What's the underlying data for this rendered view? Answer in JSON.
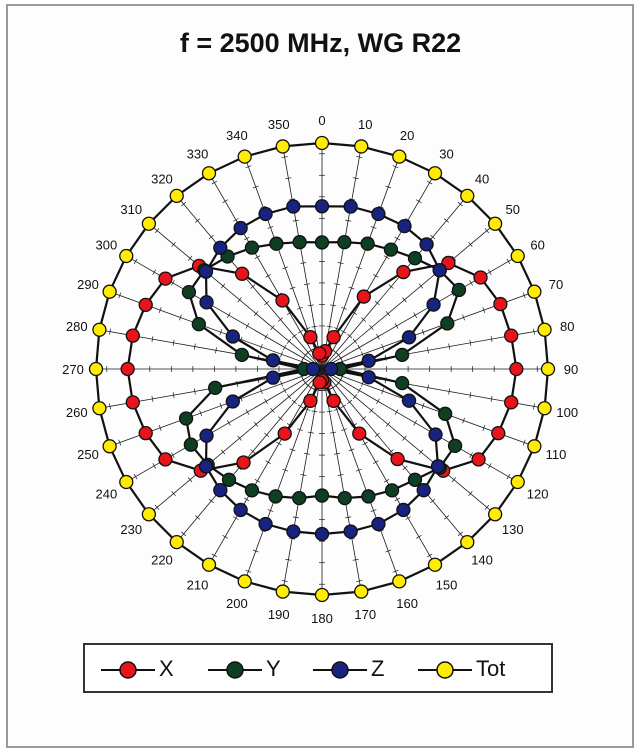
{
  "chart_data": {
    "type": "polar",
    "title": "f = 2500 MHz, WG R22",
    "angles": [
      0,
      10,
      20,
      30,
      40,
      50,
      60,
      70,
      80,
      90,
      100,
      110,
      120,
      130,
      140,
      150,
      160,
      170,
      180,
      190,
      200,
      210,
      220,
      230,
      240,
      250,
      260,
      270,
      280,
      290,
      300,
      310,
      320,
      330,
      340,
      350
    ],
    "angle_labels": [
      "0",
      "10",
      "20",
      "30",
      "40",
      "50",
      "60",
      "70",
      "80",
      "90",
      "100",
      "110",
      "120",
      "130",
      "140",
      "150",
      "160",
      "170",
      "180",
      "190",
      "200",
      "210",
      "220",
      "230",
      "240",
      "250",
      "260",
      "270",
      "280",
      "290",
      "300",
      "310",
      "320",
      "330",
      "340",
      "350"
    ],
    "rlim": [
      0,
      1.0
    ],
    "grid": true,
    "legend_position": "bottom",
    "series": [
      {
        "name": "X",
        "color": "#e8141c",
        "values": [
          0.06,
          0.08,
          0.15,
          0.37,
          0.56,
          0.73,
          0.81,
          0.84,
          0.85,
          0.86,
          0.85,
          0.83,
          0.8,
          0.7,
          0.52,
          0.33,
          0.15,
          0.06,
          0.05,
          0.06,
          0.15,
          0.33,
          0.54,
          0.7,
          0.8,
          0.83,
          0.85,
          0.86,
          0.85,
          0.83,
          0.8,
          0.71,
          0.55,
          0.35,
          0.15,
          0.07
        ]
      },
      {
        "name": "Y",
        "color": "#0f3f22",
        "values": [
          0.56,
          0.57,
          0.59,
          0.61,
          0.64,
          0.68,
          0.7,
          0.59,
          0.36,
          0.08,
          0.36,
          0.58,
          0.68,
          0.68,
          0.64,
          0.62,
          0.6,
          0.58,
          0.56,
          0.58,
          0.6,
          0.62,
          0.64,
          0.66,
          0.67,
          0.64,
          0.48,
          0.08,
          0.36,
          0.58,
          0.68,
          0.68,
          0.65,
          0.62,
          0.59,
          0.57
        ]
      },
      {
        "name": "Z",
        "color": "#18237f",
        "values": [
          0.72,
          0.73,
          0.73,
          0.73,
          0.72,
          0.68,
          0.57,
          0.41,
          0.21,
          0.04,
          0.21,
          0.41,
          0.58,
          0.67,
          0.7,
          0.72,
          0.73,
          0.73,
          0.73,
          0.73,
          0.73,
          0.72,
          0.7,
          0.67,
          0.59,
          0.42,
          0.22,
          0.04,
          0.22,
          0.42,
          0.59,
          0.67,
          0.7,
          0.72,
          0.73,
          0.73
        ]
      },
      {
        "name": "Tot",
        "color": "#ffec00",
        "values": [
          1,
          1,
          1,
          1,
          1,
          1,
          1,
          1,
          1,
          1,
          1,
          1,
          1,
          1,
          1,
          1,
          1,
          1,
          1,
          1,
          1,
          1,
          1,
          1,
          1,
          1,
          1,
          1,
          1,
          1,
          1,
          1,
          1,
          1,
          1,
          1
        ]
      }
    ]
  },
  "legend": [
    {
      "label": "X",
      "color": "#e8141c"
    },
    {
      "label": "Y",
      "color": "#0f3f22"
    },
    {
      "label": "Z",
      "color": "#18237f"
    },
    {
      "label": "Tot",
      "color": "#ffec00"
    }
  ]
}
